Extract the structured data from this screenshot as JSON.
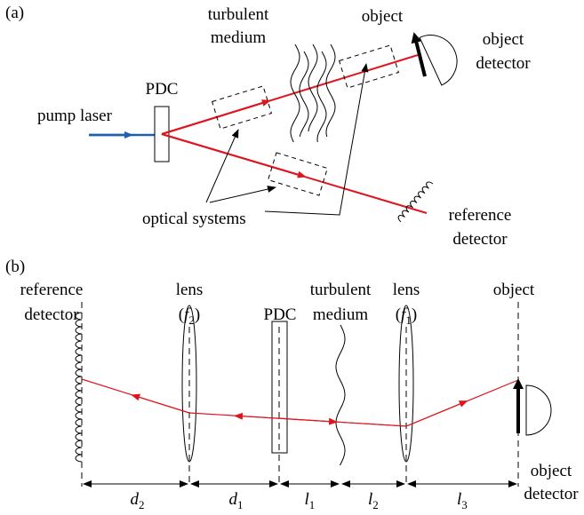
{
  "panel_a": {
    "label": "(a)",
    "pump_laser": "pump laser",
    "pdc": "PDC",
    "turbulent_medium": [
      "turbulent",
      "medium"
    ],
    "object": "object",
    "object_detector": [
      "object",
      "detector"
    ],
    "optical_systems": "optical systems",
    "reference_detector": [
      "reference",
      "detector"
    ]
  },
  "panel_b": {
    "label": "(b)",
    "reference_detector": [
      "reference",
      "detector"
    ],
    "lens_f2": {
      "name": "lens",
      "open": "(",
      "symbol": "f",
      "index": "2",
      "close": ")"
    },
    "pdc": "PDC",
    "turbulent_medium": [
      "turbulent",
      "medium"
    ],
    "lens_f1": {
      "name": "lens",
      "open": "(",
      "symbol": "f",
      "index": "1",
      "close": ")"
    },
    "object": "object",
    "object_detector": [
      "object",
      "detector"
    ],
    "distances": [
      {
        "symbol": "d",
        "index": "2"
      },
      {
        "symbol": "d",
        "index": "1"
      },
      {
        "symbol": "l",
        "index": "1"
      },
      {
        "symbol": "l",
        "index": "2"
      },
      {
        "symbol": "l",
        "index": "3"
      }
    ]
  }
}
